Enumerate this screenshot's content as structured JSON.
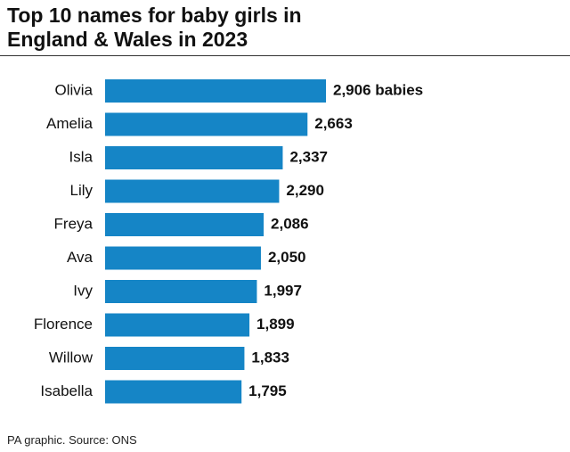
{
  "chart_data": {
    "type": "bar",
    "orientation": "horizontal",
    "title": "Top 10 names for baby girls in England & Wales in 2023",
    "categories": [
      "Olivia",
      "Amelia",
      "Isla",
      "Lily",
      "Freya",
      "Ava",
      "Ivy",
      "Florence",
      "Willow",
      "Isabella"
    ],
    "values": [
      2906,
      2663,
      2337,
      2290,
      2086,
      2050,
      1997,
      1899,
      1833,
      1795
    ],
    "value_labels": [
      "2,906 babies",
      "2,663",
      "2,337",
      "2,290",
      "2,086",
      "2,050",
      "1,997",
      "1,899",
      "1,833",
      "1,795"
    ],
    "color": "#1585c6",
    "source": "PA graphic. Source: ONS"
  }
}
